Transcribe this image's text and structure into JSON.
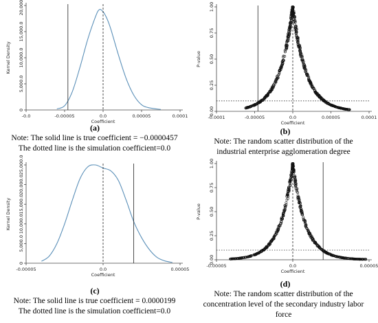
{
  "panels": {
    "a": {
      "label": "(a)",
      "caption": [
        "Note: The solid line is true coefficient = −0.0000457",
        "The dotted line is the simulation coefficient=0.0"
      ]
    },
    "b": {
      "label": "(b)",
      "caption": [
        "Note: The random scatter distribution of the",
        "industrial enterprise agglomeration degree"
      ]
    },
    "c": {
      "label": "(c)",
      "caption": [
        "Note: The solid line is true coefficient = 0.0000199",
        "The dotted line is the simulation coefficient=0.0"
      ]
    },
    "d": {
      "label": "(d)",
      "caption": [
        "Note: The random scatter distribution of the",
        "concentration level of the secondary industry labor",
        "force"
      ]
    }
  },
  "chart_data": [
    {
      "id": "a",
      "type": "line",
      "xlabel": "Coefficient",
      "ylabel": "Kernel Density",
      "xlim": [
        -0.0001,
        0.0001
      ],
      "ylim": [
        0,
        20000
      ],
      "xticks": [
        -0.0001,
        -5e-05,
        0.0,
        5e-05,
        0.0001
      ],
      "xtick_labels": [
        "-0.0",
        "-0.00005",
        "0.0",
        "0.00005",
        "0.0001"
      ],
      "yticks": [
        0,
        5000,
        10000,
        15000,
        20000
      ],
      "ytick_labels": [
        "0",
        "5,000.0",
        "10,000.0",
        "15,000.0",
        "20,000.0"
      ],
      "line_color": "#5a8fb8",
      "x": [
        -6e-05,
        -5e-05,
        -4e-05,
        -3e-05,
        -2e-05,
        -1e-05,
        -5e-06,
        0.0,
        5e-06,
        1e-05,
        2e-05,
        3e-05,
        4e-05,
        5e-05,
        6e-05,
        7.5e-05
      ],
      "y": [
        200,
        800,
        3500,
        8200,
        13500,
        17800,
        19200,
        18800,
        17500,
        15500,
        10500,
        6000,
        2800,
        1000,
        400,
        100
      ],
      "vlines": [
        {
          "x": -4.57e-05,
          "style": "solid"
        },
        {
          "x": 0.0,
          "style": "dashed"
        }
      ]
    },
    {
      "id": "b",
      "type": "scatter",
      "xlabel": "Coefficient",
      "ylabel": "P-value",
      "xlim": [
        -0.0001,
        0.0001
      ],
      "ylim": [
        0,
        1
      ],
      "xticks": [
        -0.0001,
        -5e-05,
        0.0,
        5e-05,
        0.0001
      ],
      "xtick_labels": [
        "-0.0001",
        "-0.00005",
        "0.0",
        "0.00005",
        "0.0001"
      ],
      "yticks": [
        0,
        0.25,
        0.5,
        0.75,
        1.0
      ],
      "ytick_labels": [
        "0.00",
        "0.25",
        "0.50",
        "0.75",
        "1.00"
      ],
      "scale": 1.8e-05,
      "x_range": [
        -6.2e-05,
        7.5e-05
      ],
      "vlines": [
        {
          "x": -4.57e-05,
          "style": "solid"
        },
        {
          "x": 0.0,
          "style": "dashed"
        }
      ],
      "hlines": [
        {
          "y": 0.1,
          "style": "dotted"
        }
      ]
    },
    {
      "id": "c",
      "type": "line",
      "xlabel": "Coefficient",
      "ylabel": "Kernel Density",
      "xlim": [
        -5e-05,
        5e-05
      ],
      "ylim": [
        0,
        25000
      ],
      "xticks": [
        -5e-05,
        0.0,
        5e-05
      ],
      "xtick_labels": [
        "-0.00005",
        "0.0",
        "0.00005"
      ],
      "yticks": [
        0,
        5000,
        10000,
        15000,
        20000,
        25000
      ],
      "ytick_labels": [
        "0",
        "5,000.0",
        "10,000.0",
        "15,000.0",
        "20,000.0",
        "25,000.0"
      ],
      "line_color": "#5a8fb8",
      "x": [
        -4e-05,
        -3.5e-05,
        -3e-05,
        -2.5e-05,
        -2e-05,
        -1.5e-05,
        -1e-05,
        -5e-06,
        0.0,
        5e-06,
        1e-05,
        1.5e-05,
        2e-05,
        2.5e-05,
        3e-05,
        3.5e-05,
        4e-05,
        4.5e-05
      ],
      "y": [
        500,
        1800,
        5000,
        10000,
        16000,
        21500,
        24500,
        25000,
        24200,
        23500,
        21000,
        16000,
        10500,
        6500,
        3500,
        1500,
        600,
        200
      ],
      "vlines": [
        {
          "x": 1.99e-05,
          "style": "solid"
        },
        {
          "x": 0.0,
          "style": "dashed"
        }
      ]
    },
    {
      "id": "d",
      "type": "scatter",
      "xlabel": "Coefficient",
      "ylabel": "P-value",
      "xlim": [
        -5e-05,
        5e-05
      ],
      "ylim": [
        0,
        1
      ],
      "xticks": [
        -5e-05,
        0.0,
        5e-05
      ],
      "xtick_labels": [
        "-0.00005",
        "0.0",
        "0.00005"
      ],
      "yticks": [
        0,
        0.25,
        0.5,
        0.75,
        1.0
      ],
      "ytick_labels": [
        "0.00",
        "0.25",
        "0.50",
        "0.75",
        "1.00"
      ],
      "scale": 8.5e-06,
      "x_range": [
        -4.2e-05,
        4.8e-05
      ],
      "vlines": [
        {
          "x": 1.99e-05,
          "style": "solid"
        },
        {
          "x": 0.0,
          "style": "dashed"
        }
      ],
      "hlines": [
        {
          "y": 0.1,
          "style": "dotted"
        }
      ]
    }
  ]
}
